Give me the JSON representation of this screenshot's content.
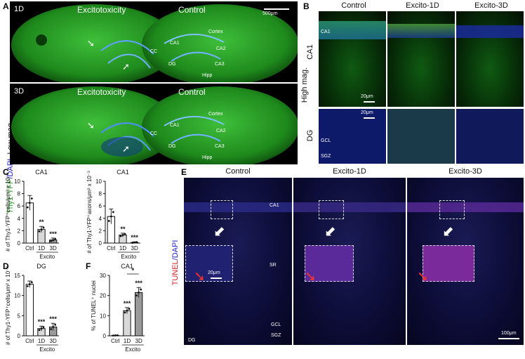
{
  "panel_letters": {
    "a": "A",
    "b": "B",
    "c": "C",
    "d": "D",
    "e": "E",
    "f": "F"
  },
  "panel_a": {
    "side_label_green": "Thy1-YFP",
    "side_label_blue": "/DAPI",
    "side_label_low": "_Low mag.",
    "top": {
      "day": "1D",
      "left": "Excitotoxicity",
      "right": "Control",
      "labels": {
        "cortex": "Cortex",
        "ca1": "CA1",
        "ca2": "CA2",
        "ca3": "CA3",
        "dg": "DG",
        "hipp": "Hipp",
        "cc": "CC"
      },
      "scale": "500μm"
    },
    "bottom": {
      "day": "3D",
      "left": "Excitotoxicity",
      "right": "Control",
      "labels": {
        "cortex": "Cortex",
        "ca1": "CA1",
        "ca2": "CA2",
        "ca3": "CA3",
        "dg": "DG",
        "hipp": "Hipp",
        "cc": "CC"
      }
    }
  },
  "panel_b": {
    "columns": [
      "Control",
      "Excito-1D",
      "Excito-3D"
    ],
    "side": "High mag.",
    "row1": "CA1",
    "row2": "DG",
    "ca1_tag": "CA1",
    "gcl": "GCL",
    "sgz": "SGZ",
    "scale1": "20μm",
    "scale2": "20μm"
  },
  "panel_e": {
    "columns": [
      "Control",
      "Excito-1D",
      "Excito-3D"
    ],
    "side_red": "TUNEL",
    "side_blue": "/DAPI",
    "ca1": "CA1",
    "sr": "SR",
    "gcl": "GCL",
    "sgz": "SGZ",
    "dg": "DG",
    "scale_inset": "20μm",
    "scale_main": "100μm"
  },
  "chart_data": [
    {
      "panel": "C-left",
      "type": "bar",
      "title": "CA1",
      "ylabel": "# of Thy1-YFP⁺cells/μm² x 10⁻³",
      "categories": [
        "Ctrl",
        "1D",
        "3D"
      ],
      "group_label": "Excito",
      "values": [
        6.5,
        2.2,
        0.5
      ],
      "errors": [
        1.2,
        0.5,
        0.3
      ],
      "ylim": [
        0,
        10
      ],
      "yticks": [
        0,
        2,
        4,
        6,
        8,
        10
      ],
      "significance": [
        "",
        "**",
        "***"
      ]
    },
    {
      "panel": "C-right",
      "type": "bar",
      "title": "CA1",
      "ylabel": "# of Thy1-YFP⁺axons/μm² x 10⁻³",
      "categories": [
        "Ctrl",
        "1D",
        "3D"
      ],
      "group_label": "Excito",
      "values": [
        4.3,
        1.3,
        0.1
      ],
      "errors": [
        1.2,
        0.3,
        0.1
      ],
      "ylim": [
        0,
        10
      ],
      "yticks": [
        0,
        2,
        4,
        6,
        8,
        10
      ],
      "significance": [
        "",
        "**",
        "***"
      ]
    },
    {
      "panel": "D",
      "type": "bar",
      "title": "DG",
      "ylabel": "# of Thy1-YFP⁺cells/μm² x 10⁻³",
      "categories": [
        "Ctrl",
        "1D",
        "3D"
      ],
      "group_label": "Excito",
      "values": [
        12.8,
        1.8,
        2.2
      ],
      "errors": [
        0.8,
        0.6,
        0.9
      ],
      "ylim": [
        0,
        15
      ],
      "yticks": [
        0,
        5,
        10,
        15
      ],
      "significance": [
        "",
        "***",
        "***"
      ]
    },
    {
      "panel": "F",
      "type": "bar",
      "title": "CA1",
      "ylabel": "% of TUNEL⁺ nuclei",
      "categories": [
        "Ctrl",
        "1D",
        "3D"
      ],
      "group_label": "Excito",
      "values": [
        0.2,
        12.5,
        21.5
      ],
      "errors": [
        0.1,
        1.5,
        2.5
      ],
      "ylim": [
        0,
        30
      ],
      "yticks": [
        0,
        10,
        20,
        30
      ],
      "significance": [
        "",
        "***",
        "***"
      ],
      "bracket": "*"
    }
  ]
}
